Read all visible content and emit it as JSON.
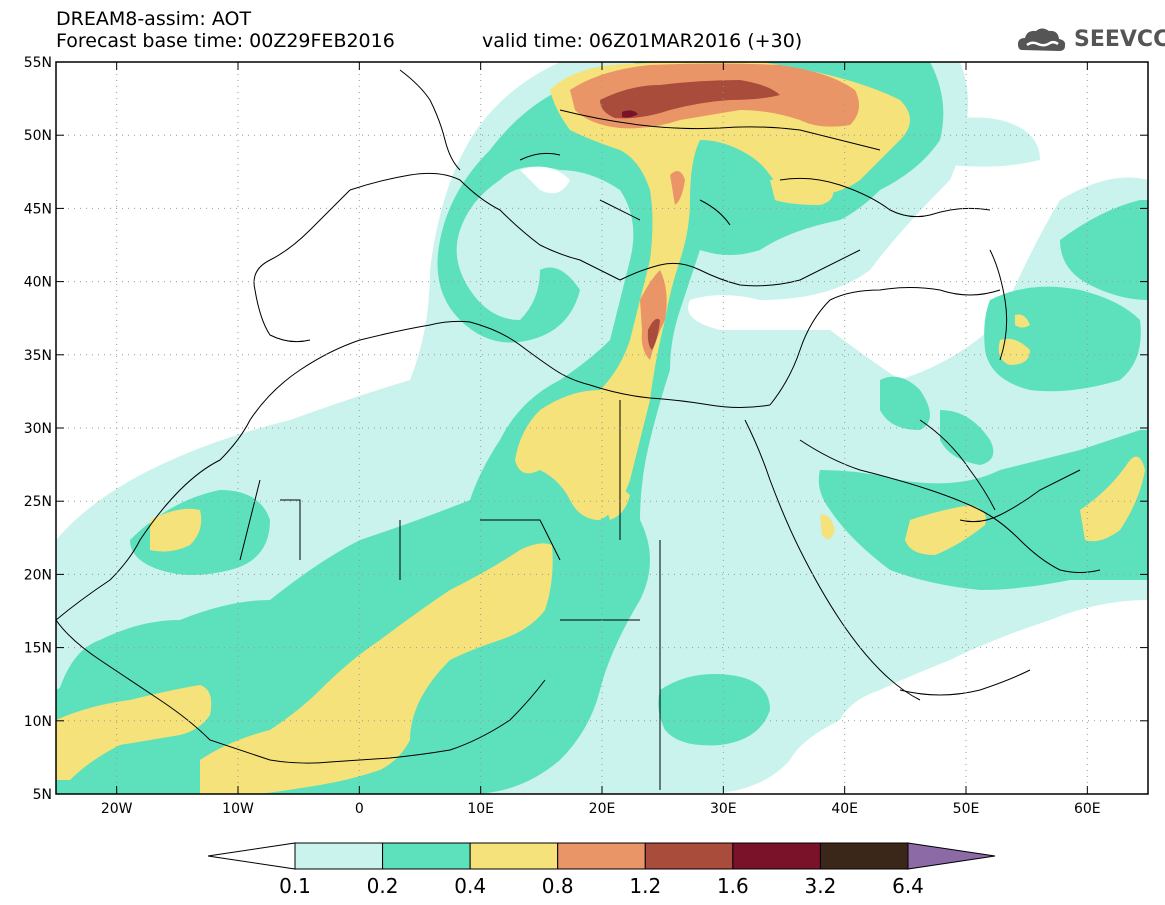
{
  "header": {
    "model_line": "DREAM8-assim: AOT",
    "base_time_line": "Forecast base time: 00Z29FEB2016",
    "valid_time_line": "valid time: 06Z01MAR2016 (+30)",
    "logo_text": "SEEVCCC"
  },
  "map": {
    "lat_labels": [
      "55N",
      "50N",
      "45N",
      "40N",
      "35N",
      "30N",
      "25N",
      "20N",
      "15N",
      "10N",
      "5N"
    ],
    "lon_labels": [
      "20W",
      "10W",
      "0",
      "10E",
      "20E",
      "30E",
      "40E",
      "50E",
      "60E"
    ],
    "lon_range": [
      -25,
      65
    ],
    "lat_range": [
      5,
      55
    ]
  },
  "legend": {
    "labels": [
      "0.1",
      "0.2",
      "0.4",
      "0.8",
      "1.2",
      "1.6",
      "3.2",
      "6.4"
    ],
    "colors": [
      "#ffffff",
      "#c9f3ec",
      "#5ce1bc",
      "#f6e27a",
      "#ea9567",
      "#a94c3c",
      "#7a1229",
      "#3b261a",
      "#8c6aa6"
    ]
  },
  "colors": {
    "c1": "#c9f3ec",
    "c2": "#5ce1bc",
    "c3": "#f6e27a",
    "c4": "#ea9567",
    "c5": "#a94c3c"
  }
}
